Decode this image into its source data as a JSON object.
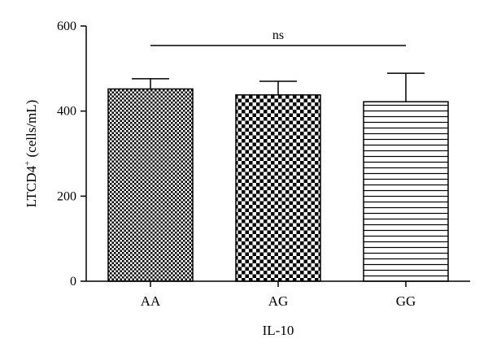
{
  "chart_data": {
    "type": "bar",
    "categories": [
      "AA",
      "AG",
      "GG"
    ],
    "values": [
      452,
      438,
      422
    ],
    "error_upper": [
      476,
      470,
      489
    ],
    "fills": [
      "fine-checker",
      "coarse-checker",
      "horizontal-lines"
    ],
    "xlabel": "IL-10",
    "ylabel_main": "LTCD4",
    "ylabel_sup": "+",
    "ylabel_unit": " (cells/mL)",
    "ylim": [
      0,
      600
    ],
    "yticks": [
      0,
      200,
      400,
      600
    ],
    "yticks_labels": [
      "0",
      "200",
      "400",
      "600"
    ],
    "significance": {
      "label": "ns",
      "from": "AA",
      "to": "GG"
    },
    "grid": false
  }
}
